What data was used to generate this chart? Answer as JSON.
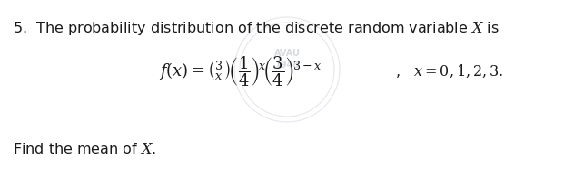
{
  "bg_color": "#ffffff",
  "text_color": "#1a1a1a",
  "fontsize_main": 11.5,
  "fontsize_formula": 13,
  "line1_text": "5.  The probability distribution of the discrete random variable $X$ is",
  "formula": "$f(x) = \\binom{3}{x}\\left(\\dfrac{1}{4}\\right)^{x}\\!\\left(\\dfrac{3}{4}\\right)^{3-x}$,\\quad $x=0,1,2,3.$",
  "line3": "Find the mean of $X$."
}
